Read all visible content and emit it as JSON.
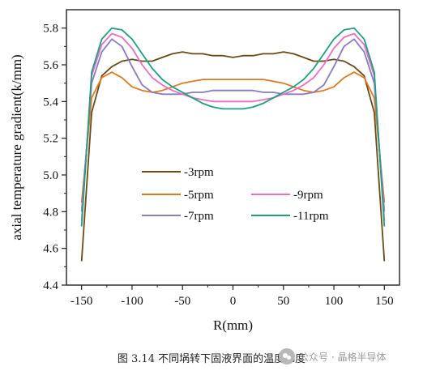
{
  "chart_data": {
    "type": "line",
    "title": "",
    "xlabel": "R(mm)",
    "ylabel": "axial temperature gradient(k/mm)",
    "xlim": [
      -165,
      165
    ],
    "ylim": [
      4.4,
      5.9
    ],
    "xticks": [
      -150,
      -100,
      -50,
      0,
      50,
      100,
      150
    ],
    "xtick_labels": [
      "-150",
      "-100",
      "-50",
      "0",
      "50",
      "100",
      "150"
    ],
    "yticks": [
      4.4,
      4.6,
      4.8,
      5.0,
      5.2,
      5.4,
      5.6,
      5.8
    ],
    "ytick_labels": [
      "4.4",
      "4.6",
      "4.8",
      "5.0",
      "5.2",
      "5.4",
      "5.6",
      "5.8"
    ],
    "grid": false,
    "legend_position": "lower-center",
    "x": [
      -150,
      -140,
      -130,
      -120,
      -110,
      -100,
      -90,
      -80,
      -70,
      -60,
      -50,
      -40,
      -30,
      -20,
      -10,
      0,
      10,
      20,
      30,
      40,
      50,
      60,
      70,
      80,
      90,
      100,
      110,
      120,
      130,
      140,
      150
    ],
    "series": [
      {
        "name": "-3rpm",
        "color": "#6b4a18",
        "values": [
          4.53,
          5.34,
          5.54,
          5.59,
          5.62,
          5.63,
          5.62,
          5.62,
          5.64,
          5.66,
          5.67,
          5.66,
          5.66,
          5.65,
          5.65,
          5.64,
          5.65,
          5.65,
          5.66,
          5.66,
          5.67,
          5.66,
          5.64,
          5.62,
          5.62,
          5.63,
          5.62,
          5.59,
          5.54,
          5.34,
          4.53
        ]
      },
      {
        "name": "-5rpm",
        "color": "#e07a1e",
        "values": [
          4.85,
          5.42,
          5.53,
          5.56,
          5.53,
          5.48,
          5.46,
          5.45,
          5.46,
          5.48,
          5.5,
          5.51,
          5.52,
          5.52,
          5.52,
          5.52,
          5.52,
          5.52,
          5.52,
          5.51,
          5.5,
          5.48,
          5.46,
          5.45,
          5.46,
          5.48,
          5.53,
          5.56,
          5.53,
          5.42,
          4.85
        ]
      },
      {
        "name": "-7rpm",
        "color": "#8a7ac2",
        "values": [
          4.8,
          5.5,
          5.67,
          5.74,
          5.7,
          5.59,
          5.49,
          5.45,
          5.44,
          5.44,
          5.44,
          5.45,
          5.45,
          5.46,
          5.46,
          5.46,
          5.46,
          5.46,
          5.45,
          5.45,
          5.44,
          5.44,
          5.44,
          5.45,
          5.49,
          5.59,
          5.7,
          5.74,
          5.67,
          5.5,
          4.8
        ]
      },
      {
        "name": "-9rpm",
        "color": "#e86fc2",
        "values": [
          4.75,
          5.54,
          5.71,
          5.77,
          5.75,
          5.69,
          5.6,
          5.53,
          5.49,
          5.46,
          5.44,
          5.42,
          5.41,
          5.4,
          5.4,
          5.4,
          5.4,
          5.4,
          5.41,
          5.42,
          5.44,
          5.46,
          5.49,
          5.53,
          5.6,
          5.69,
          5.75,
          5.77,
          5.71,
          5.54,
          4.75
        ]
      },
      {
        "name": "-11rpm",
        "color": "#1f9e82",
        "values": [
          4.72,
          5.56,
          5.74,
          5.8,
          5.79,
          5.74,
          5.66,
          5.58,
          5.52,
          5.48,
          5.45,
          5.42,
          5.39,
          5.37,
          5.36,
          5.36,
          5.36,
          5.37,
          5.39,
          5.42,
          5.45,
          5.48,
          5.52,
          5.58,
          5.66,
          5.74,
          5.79,
          5.8,
          5.74,
          5.56,
          4.72
        ]
      }
    ]
  },
  "caption": "图 3.14 不同埚转下固液界面的温度梯度",
  "watermark": {
    "text": "公众号 · 晶格半导体",
    "icon": "wechat-icon"
  }
}
